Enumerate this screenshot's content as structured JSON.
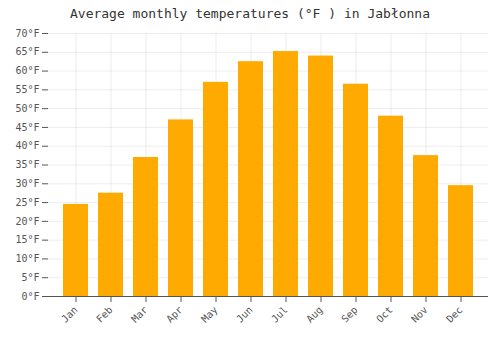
{
  "chart_data": {
    "type": "bar",
    "title": "Average monthly temperatures (°F ) in Jabłonna",
    "categories": [
      "Jan",
      "Feb",
      "Mar",
      "Apr",
      "May",
      "Jun",
      "Jul",
      "Aug",
      "Sep",
      "Oct",
      "Nov",
      "Dec"
    ],
    "values": [
      24.5,
      27.5,
      37.0,
      47.0,
      57.0,
      62.5,
      65.2,
      64.0,
      56.5,
      48.0,
      37.5,
      29.5
    ],
    "color": "#FFAA00",
    "ylim": [
      0,
      70
    ],
    "yticks": [
      {
        "value": 0,
        "label": "0°F"
      },
      {
        "value": 5,
        "label": "5°F"
      },
      {
        "value": 10,
        "label": "10°F"
      },
      {
        "value": 15,
        "label": "15°F"
      },
      {
        "value": 20,
        "label": "20°F"
      },
      {
        "value": 25,
        "label": "25°F"
      },
      {
        "value": 30,
        "label": "30°F"
      },
      {
        "value": 35,
        "label": "35°F"
      },
      {
        "value": 40,
        "label": "40°F"
      },
      {
        "value": 45,
        "label": "45°F"
      },
      {
        "value": 50,
        "label": "50°F"
      },
      {
        "value": 55,
        "label": "55°F"
      },
      {
        "value": 60,
        "label": "60°F"
      },
      {
        "value": 65,
        "label": "65°F"
      },
      {
        "value": 70,
        "label": "70°F"
      }
    ],
    "grid": true
  }
}
